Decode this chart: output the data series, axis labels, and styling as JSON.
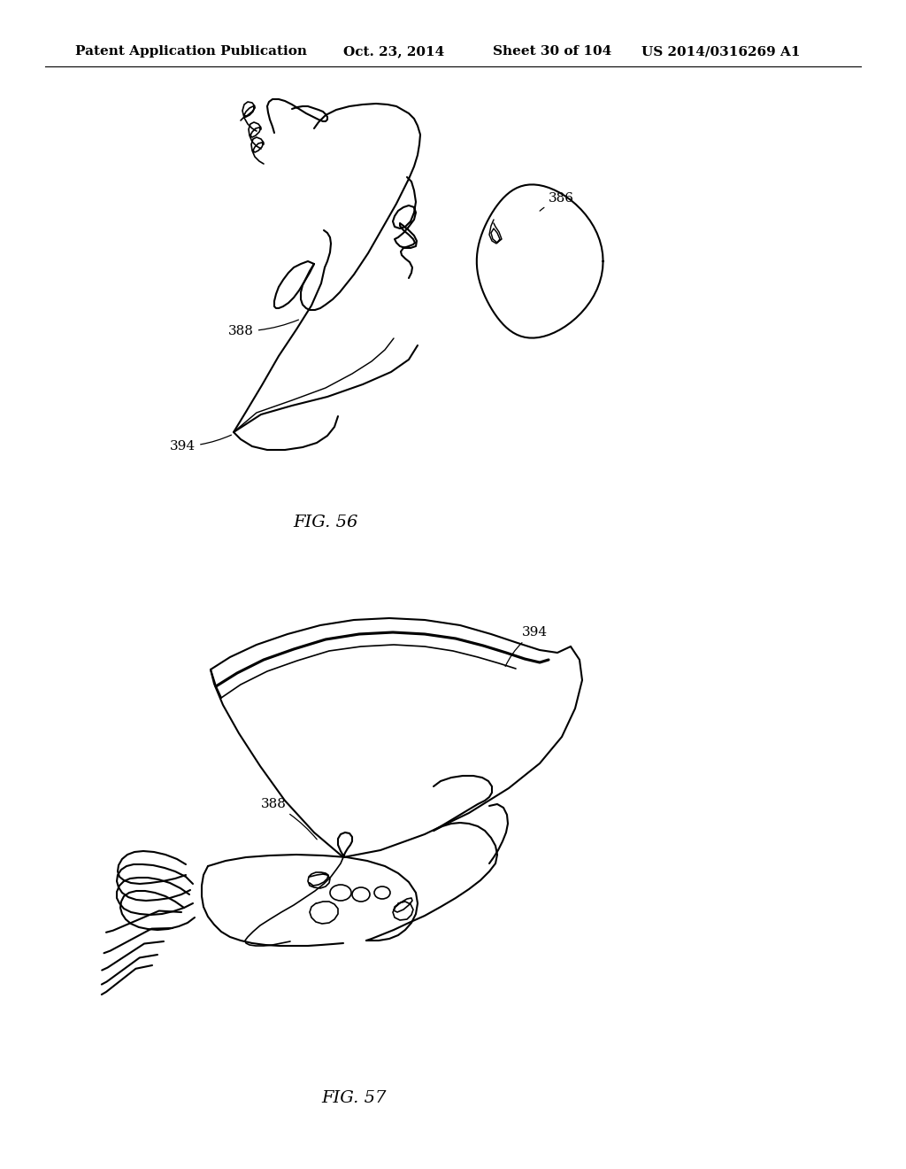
{
  "bg": "#ffffff",
  "black": "#000000",
  "header_left": "Patent Application Publication",
  "header_date": "Oct. 23, 2014",
  "header_sheet": "Sheet 30 of 104",
  "header_patent": "US 2014/0316269 A1",
  "fig56_label": "FIG. 56",
  "fig57_label": "FIG. 57",
  "lbl_388_56": "388",
  "lbl_386_56": "386",
  "lbl_394_56": "394",
  "lbl_394_57": "394",
  "lbl_388_57": "388",
  "hdr_fontsize": 11,
  "fig_fontsize": 14,
  "ann_fontsize": 11
}
